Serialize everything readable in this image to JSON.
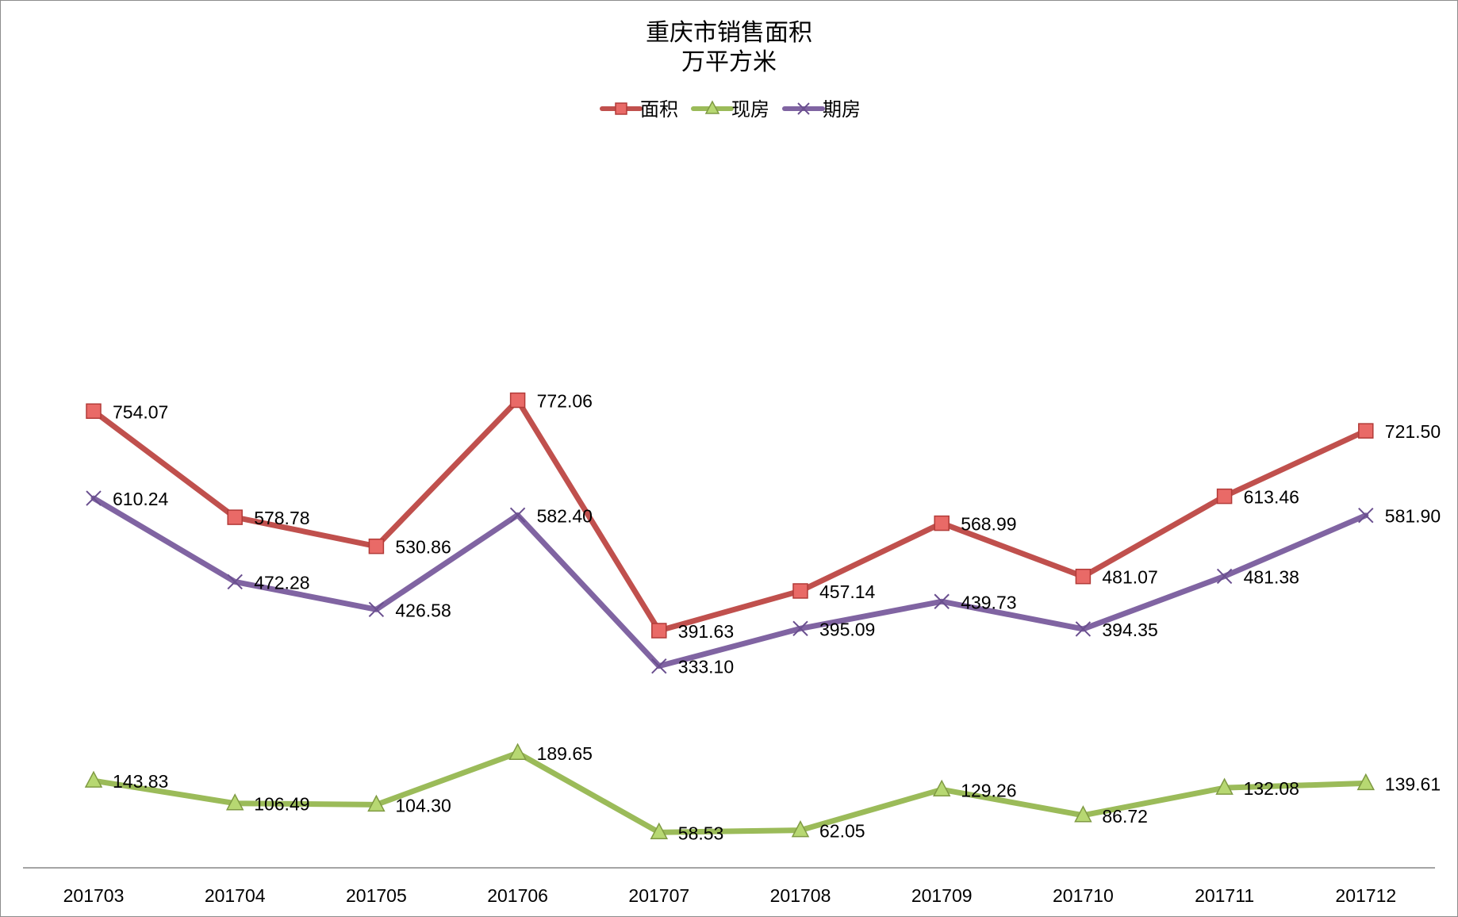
{
  "chart_data": {
    "type": "line",
    "title": "重庆市销售面积",
    "subtitle": "万平方米",
    "xlabel": "",
    "ylabel": "",
    "legend_position": "top-center",
    "grid": false,
    "categories": [
      "201703",
      "201704",
      "201705",
      "201706",
      "201707",
      "201708",
      "201709",
      "201710",
      "201711",
      "201712"
    ],
    "series": [
      {
        "name": "面积",
        "color": "#c0504d",
        "marker": "square",
        "values": [
          754.07,
          578.78,
          530.86,
          772.06,
          391.63,
          457.14,
          568.99,
          481.07,
          613.46,
          721.5
        ],
        "labels": [
          "754.07",
          "578.78",
          "530.86",
          "772.06",
          "391.63",
          "457.14",
          "568.99",
          "481.07",
          "613.46",
          "721.50"
        ]
      },
      {
        "name": "现房",
        "color": "#9bbb59",
        "marker": "triangle",
        "values": [
          143.83,
          106.49,
          104.3,
          189.65,
          58.53,
          62.05,
          129.26,
          86.72,
          132.08,
          139.61
        ],
        "labels": [
          "143.83",
          "106.49",
          "104.30",
          "189.65",
          "58.53",
          "62.05",
          "129.26",
          "86.72",
          "132.08",
          "139.61"
        ]
      },
      {
        "name": "期房",
        "color": "#8064a2",
        "marker": "x",
        "values": [
          610.24,
          472.28,
          426.58,
          582.4,
          333.1,
          395.09,
          439.73,
          394.35,
          481.38,
          581.9
        ],
        "labels": [
          "610.24",
          "472.28",
          "426.58",
          "582.40",
          "333.10",
          "395.09",
          "439.73",
          "394.35",
          "481.38",
          "581.90"
        ]
      }
    ]
  }
}
